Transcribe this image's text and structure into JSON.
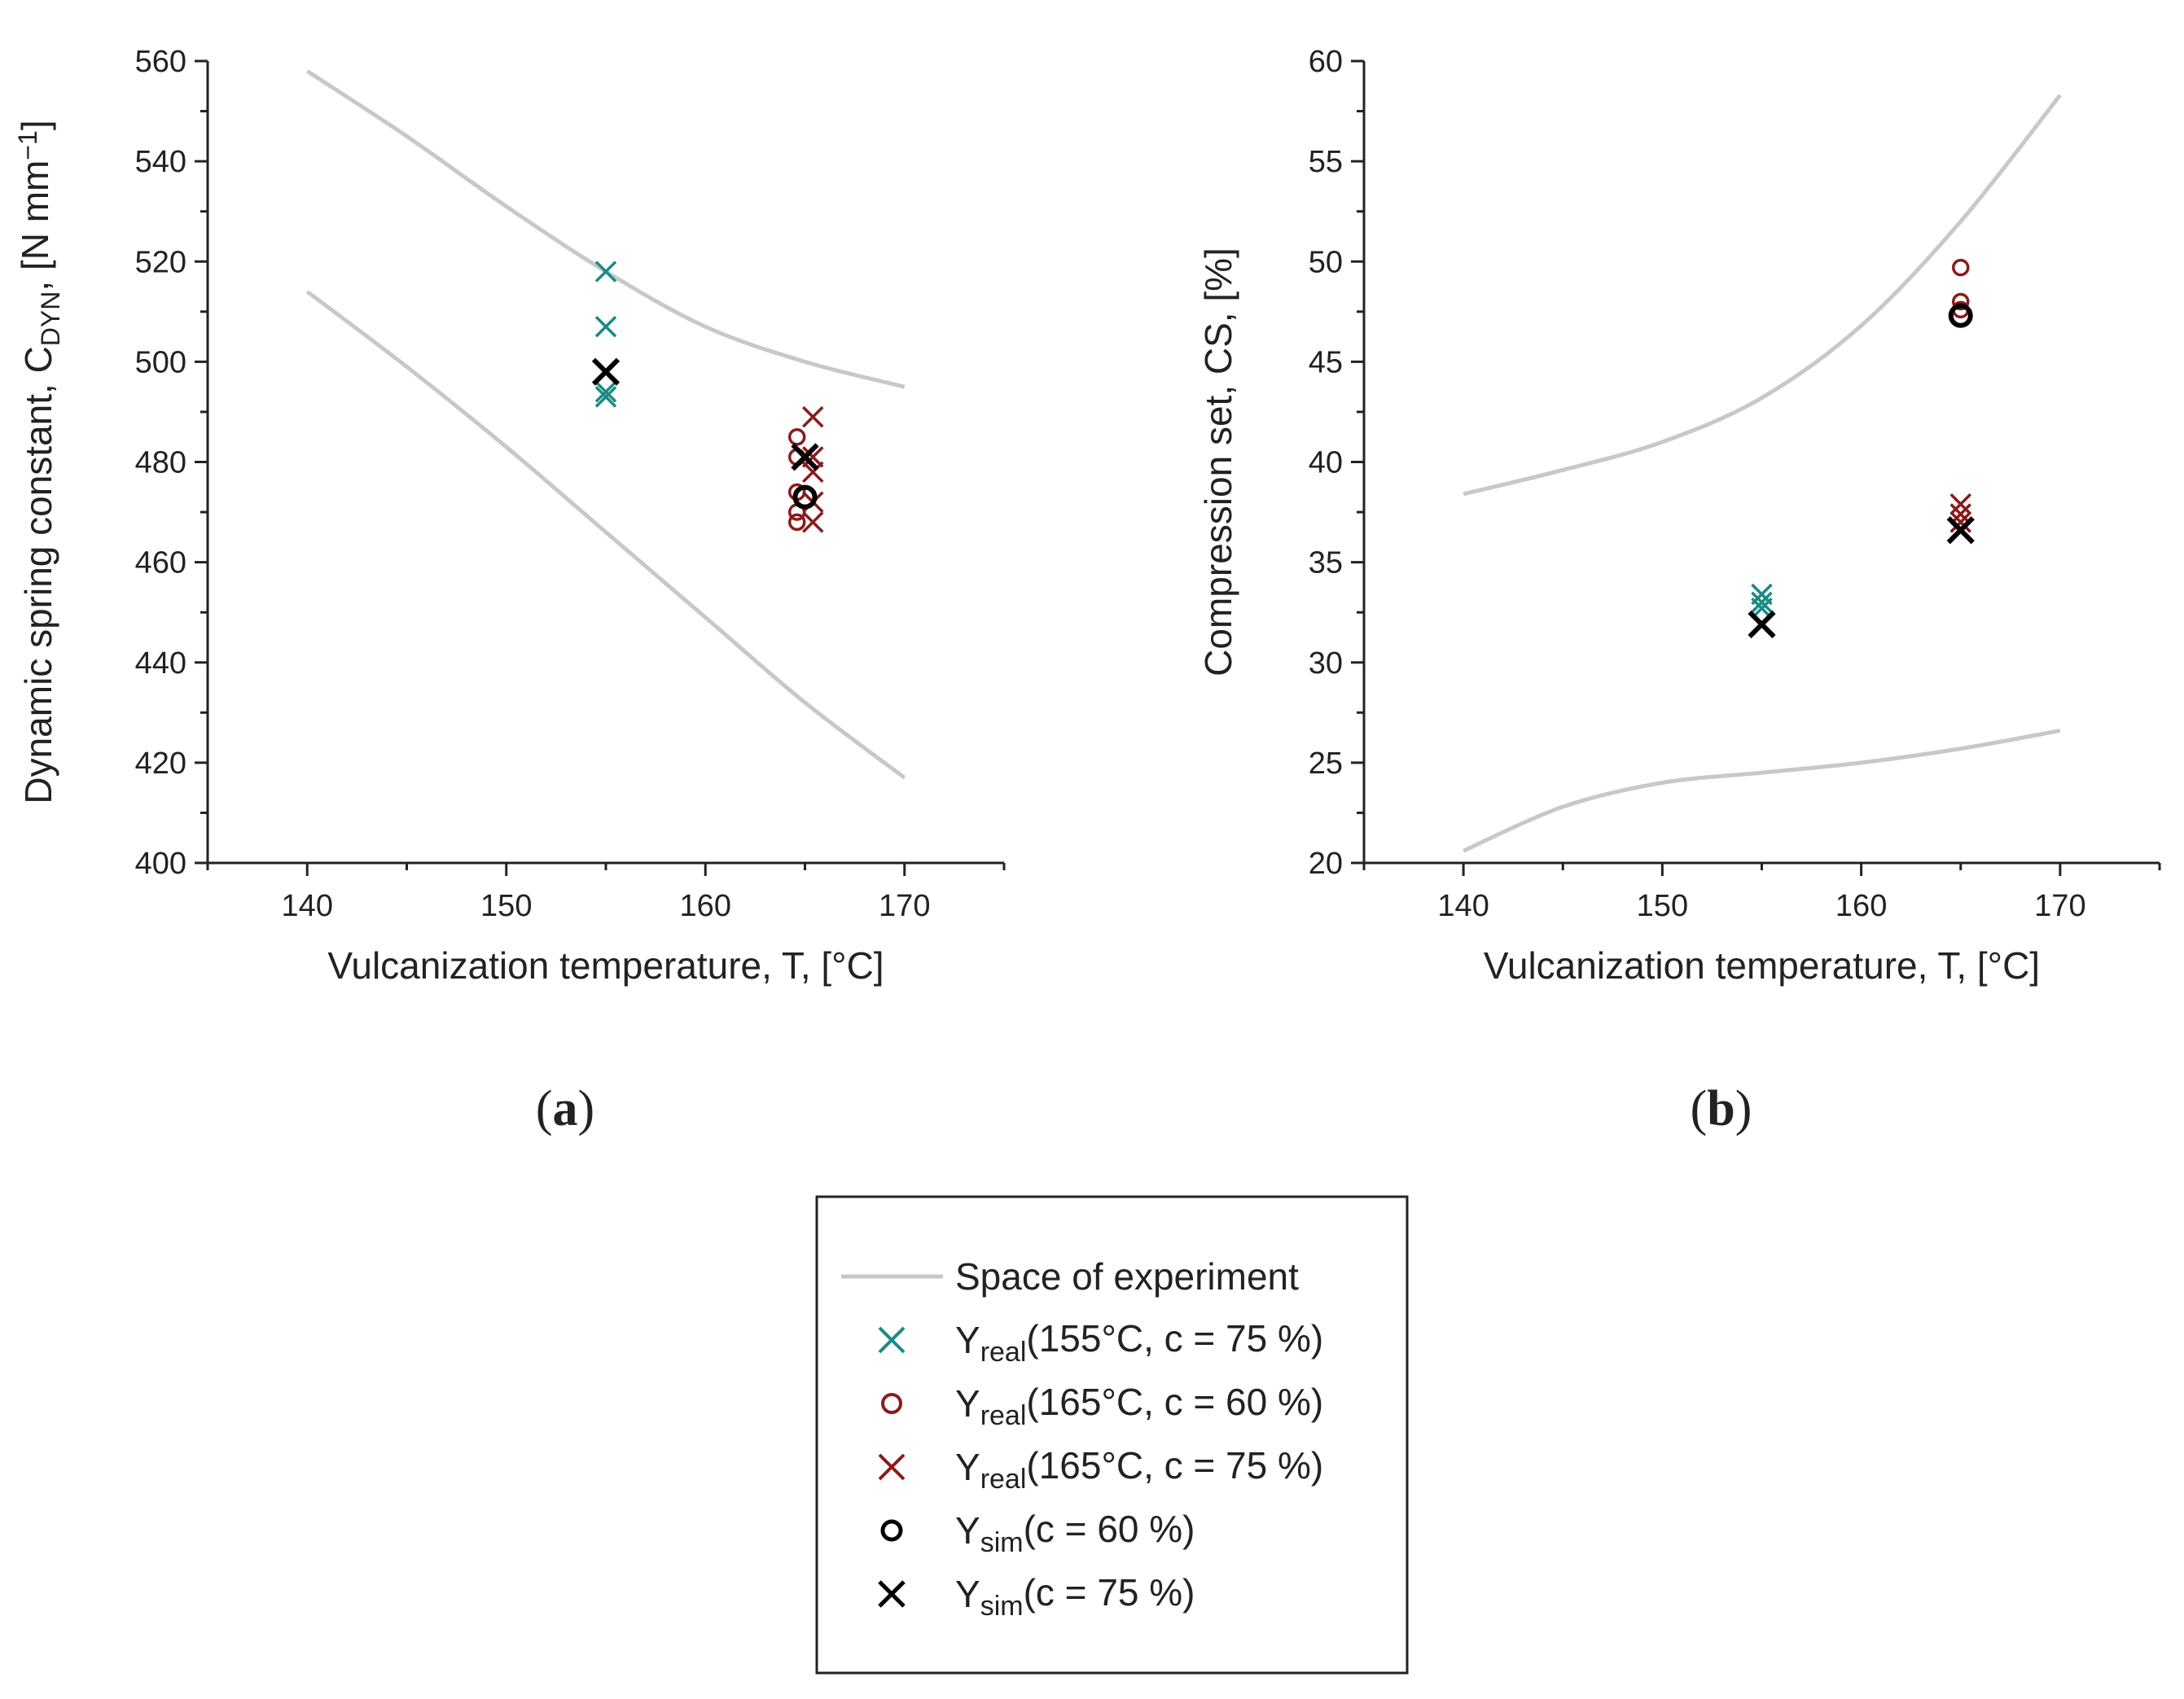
{
  "chart_data": [
    {
      "type": "scatter",
      "panel": "(a)",
      "panel_label": {
        "open": "(",
        "letter": "a",
        "close": ")"
      },
      "xlabel": "Vulcanization temperature, T, [°C]",
      "ylabel": {
        "main": "Dynamic spring constant, C",
        "sub": "DYN",
        "rest": ", [N mm",
        "sup": "−1",
        "end": "]"
      },
      "xlim": [
        135,
        175
      ],
      "ylim": [
        400,
        560
      ],
      "x_ticks": [
        140,
        150,
        160,
        170
      ],
      "x_tick_labels": [
        "140",
        "150",
        "160",
        "170"
      ],
      "y_ticks": [
        400,
        420,
        440,
        460,
        480,
        500,
        520,
        540,
        560
      ],
      "y_tick_labels": [
        "400",
        "420",
        "440",
        "460",
        "480",
        "500",
        "520",
        "540",
        "560"
      ],
      "x_minor_step": 5,
      "y_minor_step": 10,
      "grid": false,
      "series": [
        {
          "name": "Space of experiment",
          "kind": "line",
          "color": "#c8c8c8",
          "x": [
            140,
            145,
            150,
            155,
            160,
            165,
            170
          ],
          "y": [
            558,
            545,
            531,
            518,
            507,
            500,
            495
          ]
        },
        {
          "name": "Space of experiment",
          "kind": "line",
          "color": "#c8c8c8",
          "x": [
            140,
            145,
            150,
            155,
            160,
            165,
            170
          ],
          "y": [
            514,
            499,
            483,
            466,
            449,
            432,
            417
          ]
        },
        {
          "name": "Yreal(155°C, c = 75 %)",
          "kind": "x",
          "color": "#1a8a84",
          "x": [
            155,
            155,
            155,
            155
          ],
          "y": [
            518,
            507,
            494,
            493
          ]
        },
        {
          "name": "Yreal(165°C, c = 60 %)",
          "kind": "o",
          "color": "#8b1a1a",
          "x": [
            164.6,
            164.6,
            164.6,
            164.6,
            164.6
          ],
          "y": [
            485,
            481,
            474,
            470,
            468
          ]
        },
        {
          "name": "Yreal(165°C, c = 75 %)",
          "kind": "x",
          "color": "#8b1a1a",
          "x": [
            165.4,
            165.4,
            165.4,
            165.4,
            165.4
          ],
          "y": [
            489,
            481,
            478,
            472,
            468
          ]
        },
        {
          "name": "Ysim(c = 60 %)",
          "kind": "o",
          "color": "#000000",
          "x": [
            165
          ],
          "y": [
            473
          ]
        },
        {
          "name": "Ysim(c = 75 %)",
          "kind": "x",
          "color": "#000000",
          "x": [
            155,
            165
          ],
          "y": [
            498,
            481
          ]
        }
      ]
    },
    {
      "type": "scatter",
      "panel": "(b)",
      "panel_label": {
        "open": "(",
        "letter": "b",
        "close": ")"
      },
      "xlabel": "Vulcanization temperature, T, [°C]",
      "ylabel": {
        "main": "Compression set, CS, [%]"
      },
      "xlim": [
        135,
        175
      ],
      "ylim": [
        20,
        60
      ],
      "x_ticks": [
        140,
        150,
        160,
        170
      ],
      "x_tick_labels": [
        "140",
        "150",
        "160",
        "170"
      ],
      "y_ticks": [
        20,
        25,
        30,
        35,
        40,
        45,
        50,
        55,
        60
      ],
      "y_tick_labels": [
        "20",
        "25",
        "30",
        "35",
        "40",
        "45",
        "50",
        "55",
        "60"
      ],
      "x_minor_step": 5,
      "y_minor_step": 2.5,
      "grid": false,
      "series": [
        {
          "name": "Space of experiment",
          "kind": "line",
          "color": "#c8c8c8",
          "x": [
            140,
            145,
            150,
            155,
            160,
            165,
            170
          ],
          "y": [
            38.4,
            39.6,
            41.0,
            43.2,
            46.8,
            52.0,
            58.3
          ]
        },
        {
          "name": "Space of experiment",
          "kind": "line",
          "color": "#c8c8c8",
          "x": [
            140,
            145,
            150,
            155,
            160,
            165,
            170
          ],
          "y": [
            20.6,
            22.8,
            24.0,
            24.5,
            25.0,
            25.7,
            26.6
          ]
        },
        {
          "name": "Yreal(155°C, c = 75 %)",
          "kind": "x",
          "color": "#1a8a84",
          "x": [
            155,
            155,
            155
          ],
          "y": [
            33.4,
            33.0,
            32.7
          ]
        },
        {
          "name": "Yreal(165°C, c = 60 %)",
          "kind": "o",
          "color": "#8b1a1a",
          "x": [
            165,
            165,
            165
          ],
          "y": [
            49.7,
            48.0,
            47.6
          ]
        },
        {
          "name": "Yreal(165°C, c = 75 %)",
          "kind": "x",
          "color": "#8b1a1a",
          "x": [
            165,
            165,
            165
          ],
          "y": [
            37.9,
            37.4,
            37.0
          ]
        },
        {
          "name": "Ysim(c = 60 %)",
          "kind": "o",
          "color": "#000000",
          "x": [
            165
          ],
          "y": [
            47.3
          ]
        },
        {
          "name": "Ysim(c = 75 %)",
          "kind": "x",
          "color": "#000000",
          "x": [
            155,
            165
          ],
          "y": [
            31.9,
            36.6
          ]
        }
      ]
    }
  ],
  "legend": {
    "placement": "bottom-center",
    "entries": [
      {
        "kind": "line",
        "color": "#c8c8c8",
        "text": "Space of experiment"
      },
      {
        "kind": "x",
        "color": "#1a8a84",
        "base": "Y",
        "sub": "real",
        "rest": "(155°C, c = 75 %)"
      },
      {
        "kind": "o",
        "color": "#8b1a1a",
        "base": "Y",
        "sub": "real",
        "rest": "(165°C, c = 60 %)"
      },
      {
        "kind": "x",
        "color": "#8b1a1a",
        "base": "Y",
        "sub": "real",
        "rest": "(165°C, c = 75 %)"
      },
      {
        "kind": "o",
        "color": "#000000",
        "base": "Y",
        "sub": "sim",
        "rest": "(c = 60 %)"
      },
      {
        "kind": "x",
        "color": "#000000",
        "base": "Y",
        "sub": "sim",
        "rest": "(c = 75 %)"
      }
    ]
  }
}
